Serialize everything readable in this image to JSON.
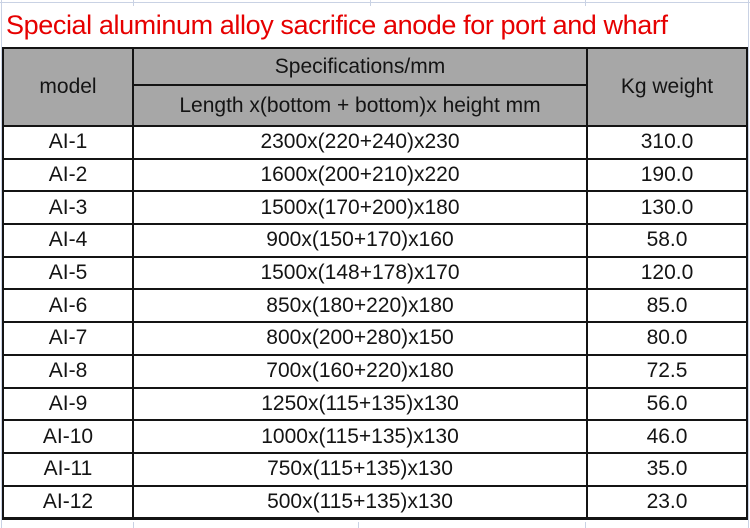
{
  "page": {
    "title": "Special aluminum alloy sacrifice anode for port and wharf"
  },
  "colors": {
    "title": "#e60000",
    "header_bg": "#a7a7a7",
    "border": "#141414",
    "gridline": "#c9d2e4",
    "text": "#141414"
  },
  "table": {
    "headers": {
      "model": "model",
      "specs_group": "Specifications/mm",
      "specs_sub": "Length x(bottom + bottom)x height mm",
      "weight": "Kg weight"
    },
    "rows": [
      {
        "model": "AI-1",
        "spec": "2300x(220+240)x230",
        "weight": "310.0"
      },
      {
        "model": "AI-2",
        "spec": "1600x(200+210)x220",
        "weight": "190.0"
      },
      {
        "model": "AI-3",
        "spec": "1500x(170+200)x180",
        "weight": "130.0"
      },
      {
        "model": "AI-4",
        "spec": "900x(150+170)x160",
        "weight": "58.0"
      },
      {
        "model": "AI-5",
        "spec": "1500x(148+178)x170",
        "weight": "120.0"
      },
      {
        "model": "AI-6",
        "spec": "850x(180+220)x180",
        "weight": "85.0"
      },
      {
        "model": "AI-7",
        "spec": "800x(200+280)x150",
        "weight": "80.0"
      },
      {
        "model": "AI-8",
        "spec": "700x(160+220)x180",
        "weight": "72.5"
      },
      {
        "model": "AI-9",
        "spec": "1250x(115+135)x130",
        "weight": "56.0"
      },
      {
        "model": "AI-10",
        "spec": "1000x(115+135)x130",
        "weight": "46.0"
      },
      {
        "model": "AI-11",
        "spec": "750x(115+135)x130",
        "weight": "35.0"
      },
      {
        "model": "AI-12",
        "spec": "500x(115+135)x130",
        "weight": "23.0"
      }
    ]
  }
}
